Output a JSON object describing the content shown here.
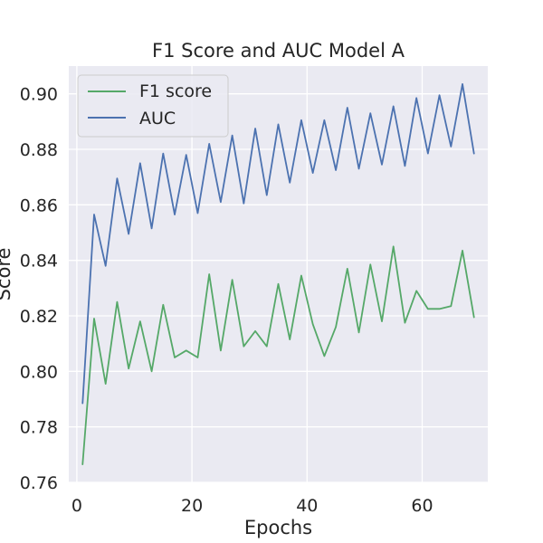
{
  "chart_data": {
    "type": "line",
    "title": "F1 Score and AUC Model A",
    "xlabel": "Epochs",
    "ylabel": "Score",
    "xlim": [
      -1.4,
      71.4
    ],
    "ylim": [
      0.76,
      0.91
    ],
    "xticks": [
      0,
      20,
      40,
      60
    ],
    "yticks": [
      0.76,
      0.78,
      0.8,
      0.82,
      0.84,
      0.86,
      0.88,
      0.9
    ],
    "x_tick_labels": [
      "0",
      "20",
      "40",
      "60"
    ],
    "y_tick_labels": [
      "0.76",
      "0.78",
      "0.80",
      "0.82",
      "0.84",
      "0.86",
      "0.88",
      "0.90"
    ],
    "grid": true,
    "legend_position": "upper-left",
    "x": [
      1,
      3,
      5,
      7,
      9,
      11,
      13,
      15,
      17,
      19,
      21,
      23,
      25,
      27,
      29,
      31,
      33,
      35,
      37,
      39,
      41,
      43,
      45,
      47,
      49,
      51,
      53,
      55,
      57,
      59,
      61,
      63,
      65,
      67,
      69
    ],
    "series": [
      {
        "name": "F1 score",
        "color": "#55a868",
        "values": [
          0.7665,
          0.819,
          0.7955,
          0.825,
          0.801,
          0.818,
          0.8,
          0.824,
          0.805,
          0.8075,
          0.805,
          0.835,
          0.8075,
          0.833,
          0.809,
          0.8145,
          0.809,
          0.8315,
          0.8115,
          0.8345,
          0.817,
          0.8055,
          0.816,
          0.837,
          0.814,
          0.8385,
          0.818,
          0.845,
          0.8175,
          0.829,
          0.8225,
          0.8225,
          0.8235,
          0.8435,
          0.8195
        ]
      },
      {
        "name": "AUC",
        "color": "#4c72b0",
        "values": [
          0.7885,
          0.8565,
          0.838,
          0.8695,
          0.8495,
          0.875,
          0.8515,
          0.8785,
          0.8565,
          0.878,
          0.857,
          0.882,
          0.861,
          0.885,
          0.8605,
          0.8875,
          0.8635,
          0.889,
          0.868,
          0.8905,
          0.8715,
          0.8905,
          0.8725,
          0.895,
          0.873,
          0.893,
          0.8745,
          0.8955,
          0.874,
          0.8985,
          0.8785,
          0.8995,
          0.881,
          0.9035,
          0.8785
        ]
      }
    ]
  }
}
